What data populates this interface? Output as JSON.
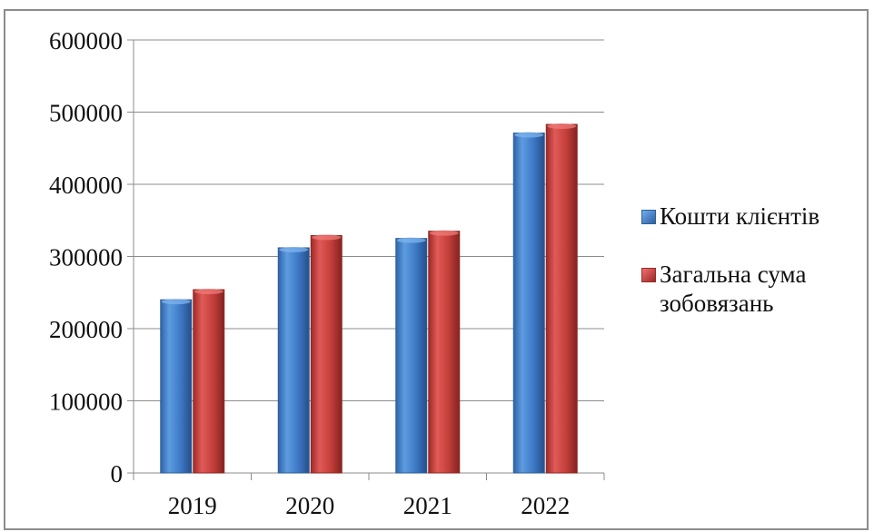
{
  "colors": {
    "series_1": "#4f81bd",
    "series_2": "#c0504d",
    "axis": "#8c8c8c",
    "grid": "#8c8c8c"
  },
  "chart_data": {
    "type": "bar",
    "title": "",
    "xlabel": "",
    "ylabel": "",
    "ylim": [
      0,
      600000
    ],
    "grid": true,
    "legend_position": "right",
    "categories": [
      "2019",
      "2020",
      "2021",
      "2022"
    ],
    "y_ticks": [
      "0",
      "100000",
      "200000",
      "300000",
      "400000",
      "500000",
      "600000"
    ],
    "series": [
      {
        "name": "Кошти клієнтів",
        "color": "#4f81bd",
        "values": [
          240000,
          312000,
          325000,
          471000
        ]
      },
      {
        "name": "Загальна сума зобовязань",
        "color": "#c0504d",
        "values": [
          254000,
          329000,
          335000,
          483000
        ]
      }
    ]
  }
}
